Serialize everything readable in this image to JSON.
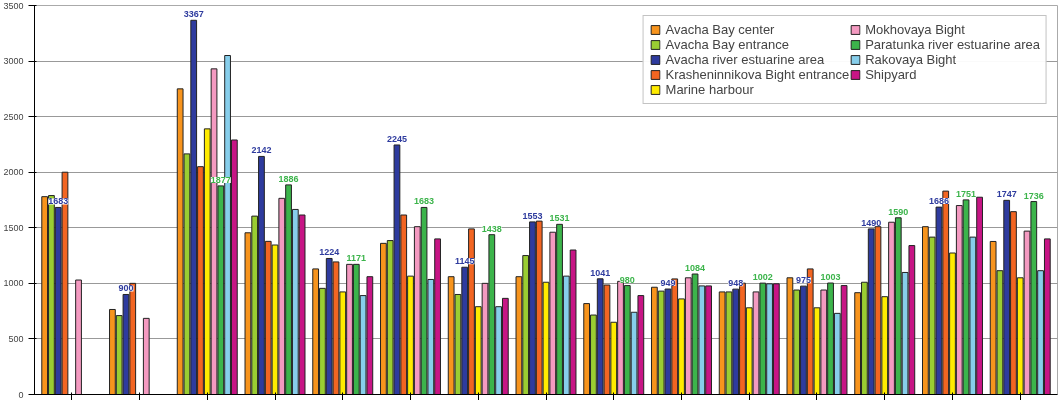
{
  "chart_data": {
    "type": "bar",
    "categories": [
      null,
      null,
      null,
      null,
      null,
      null,
      null,
      null,
      null,
      null,
      null,
      null,
      null,
      null,
      null
    ],
    "ylim": [
      0,
      3500
    ],
    "yticks": [
      0,
      500,
      1000,
      1500,
      2000,
      2500,
      3000,
      3500
    ],
    "grid": "y",
    "legend": "top right",
    "series": [
      {
        "name": "Avacha Bay center",
        "color": "#f7941d",
        "values": [
          1780,
          765,
          2750,
          1455,
          1130,
          1360,
          1060,
          1060,
          818,
          965,
          923,
          1050,
          916,
          1510,
          1377
        ]
      },
      {
        "name": "Avacha Bay entrance",
        "color": "#9acd32",
        "values": [
          1790,
          710,
          2165,
          1605,
          955,
          1385,
          900,
          1250,
          715,
          930,
          923,
          940,
          1010,
          1416,
          1114
        ]
      },
      {
        "name": "Avacha river estuarine area",
        "color": "#2e3b9e",
        "values": [
          1683,
          900,
          3367,
          2142,
          1224,
          2245,
          1145,
          1553,
          1041,
          949,
          948,
          975,
          1490,
          1686,
          1747
        ],
        "value_labels": [
          "1683",
          "900",
          "3367",
          "2142",
          "1224",
          "2245",
          "1145",
          "1553",
          "1041",
          "949",
          "948",
          "975",
          "1490",
          "1686",
          "1747"
        ]
      },
      {
        "name": "Krasheninnikova Bight entrance",
        "color": "#f26522",
        "values": [
          2000,
          1000,
          2050,
          1378,
          1193,
          1615,
          1490,
          1560,
          985,
          1040,
          1002,
          1130,
          1510,
          1830,
          1645
        ]
      },
      {
        "name": "Marine harbour",
        "color": "#ffeb00",
        "values": [
          null,
          null,
          2390,
          1345,
          923,
          1065,
          790,
          1010,
          650,
          860,
          780,
          780,
          880,
          1273,
          1050
        ]
      },
      {
        "name": "Mokhovaya Bight",
        "color": "#f49ac1",
        "values": [
          1030,
          685,
          2930,
          1765,
          1171,
          1510,
          1000,
          1460,
          1018,
          1050,
          923,
          940,
          1550,
          1700,
          1470
        ]
      },
      {
        "name": "Paratunka river estuarine area",
        "color": "#3cb44b",
        "values": [
          null,
          null,
          1877,
          1886,
          1171,
          1683,
          1438,
          1531,
          980,
          1084,
          1002,
          1003,
          1590,
          1751,
          1736
        ],
        "value_labels": [
          null,
          null,
          "1877",
          "1886",
          "1171",
          "1683",
          "1438",
          "1531",
          "980",
          "1084",
          "1002",
          "1003",
          "1590",
          "1751",
          "1736"
        ]
      },
      {
        "name": "Rakovaya Bight",
        "color": "#87ceeb",
        "values": [
          null,
          null,
          3050,
          1665,
          890,
          1035,
          790,
          1065,
          740,
          977,
          996,
          730,
          1098,
          1416,
          1114
        ]
      },
      {
        "name": "Shipyard",
        "color": "#c71585",
        "values": [
          null,
          null,
          2290,
          1615,
          1060,
          1400,
          865,
          1300,
          890,
          977,
          996,
          980,
          1340,
          1775,
          1400
        ]
      }
    ]
  }
}
